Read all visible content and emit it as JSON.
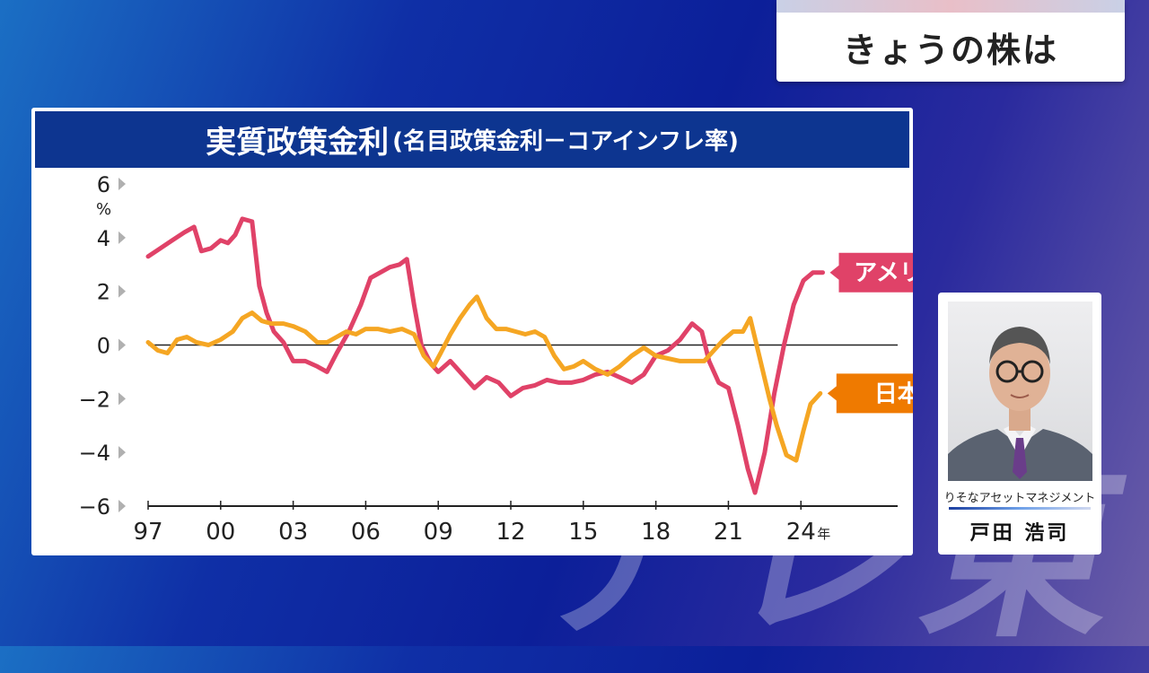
{
  "segment": {
    "title": "きょうの株は"
  },
  "watermark": "テレ東",
  "chart_data": {
    "type": "line",
    "title": "実質政策金利",
    "subtitle": "(名目政策金利－コアインフレ率)",
    "ylabel_unit": "%",
    "ylim": [
      -6,
      6
    ],
    "yticks": [
      6,
      4,
      2,
      0,
      -2,
      -4,
      -6
    ],
    "ytick_labels": [
      "6",
      "4",
      "2",
      "0",
      "−2",
      "−4",
      "−6"
    ],
    "xlim": [
      1997,
      2028
    ],
    "xticks": [
      1997,
      2000,
      2003,
      2006,
      2009,
      2012,
      2015,
      2018,
      2021,
      2024
    ],
    "xtick_labels": [
      "97",
      "00",
      "03",
      "06",
      "09",
      "12",
      "15",
      "18",
      "21",
      "24"
    ],
    "x_unit": "年",
    "zero_line": true,
    "series": [
      {
        "name": "アメリカ",
        "color": "#e04268",
        "points": [
          [
            1997.0,
            3.3
          ],
          [
            1997.5,
            3.6
          ],
          [
            1998.0,
            3.9
          ],
          [
            1998.5,
            4.2
          ],
          [
            1998.9,
            4.4
          ],
          [
            1999.2,
            3.5
          ],
          [
            1999.6,
            3.6
          ],
          [
            2000.0,
            3.9
          ],
          [
            2000.3,
            3.8
          ],
          [
            2000.6,
            4.1
          ],
          [
            2000.9,
            4.7
          ],
          [
            2001.3,
            4.6
          ],
          [
            2001.6,
            2.2
          ],
          [
            2001.9,
            1.2
          ],
          [
            2002.2,
            0.5
          ],
          [
            2002.6,
            0.1
          ],
          [
            2003.0,
            -0.6
          ],
          [
            2003.5,
            -0.6
          ],
          [
            2004.0,
            -0.8
          ],
          [
            2004.4,
            -1.0
          ],
          [
            2004.8,
            -0.3
          ],
          [
            2005.3,
            0.5
          ],
          [
            2005.8,
            1.5
          ],
          [
            2006.2,
            2.5
          ],
          [
            2006.6,
            2.7
          ],
          [
            2007.0,
            2.9
          ],
          [
            2007.4,
            3.0
          ],
          [
            2007.7,
            3.2
          ],
          [
            2008.0,
            1.5
          ],
          [
            2008.3,
            0.0
          ],
          [
            2008.7,
            -0.7
          ],
          [
            2009.0,
            -1.0
          ],
          [
            2009.5,
            -0.6
          ],
          [
            2010.0,
            -1.1
          ],
          [
            2010.5,
            -1.6
          ],
          [
            2011.0,
            -1.2
          ],
          [
            2011.5,
            -1.4
          ],
          [
            2012.0,
            -1.9
          ],
          [
            2012.5,
            -1.6
          ],
          [
            2013.0,
            -1.5
          ],
          [
            2013.5,
            -1.3
          ],
          [
            2014.0,
            -1.4
          ],
          [
            2014.5,
            -1.4
          ],
          [
            2015.0,
            -1.3
          ],
          [
            2015.5,
            -1.1
          ],
          [
            2016.0,
            -1.0
          ],
          [
            2016.5,
            -1.2
          ],
          [
            2017.0,
            -1.4
          ],
          [
            2017.5,
            -1.1
          ],
          [
            2018.0,
            -0.4
          ],
          [
            2018.5,
            -0.2
          ],
          [
            2019.0,
            0.2
          ],
          [
            2019.5,
            0.8
          ],
          [
            2019.9,
            0.5
          ],
          [
            2020.2,
            -0.6
          ],
          [
            2020.6,
            -1.4
          ],
          [
            2021.0,
            -1.6
          ],
          [
            2021.4,
            -3.0
          ],
          [
            2021.8,
            -4.6
          ],
          [
            2022.1,
            -5.5
          ],
          [
            2022.5,
            -4.0
          ],
          [
            2022.9,
            -1.8
          ],
          [
            2023.3,
            0.0
          ],
          [
            2023.7,
            1.5
          ],
          [
            2024.1,
            2.4
          ],
          [
            2024.5,
            2.7
          ],
          [
            2024.9,
            2.7
          ]
        ]
      },
      {
        "name": "日本",
        "color": "#f5a623",
        "points": [
          [
            1997.0,
            0.1
          ],
          [
            1997.4,
            -0.2
          ],
          [
            1997.8,
            -0.3
          ],
          [
            1998.2,
            0.2
          ],
          [
            1998.6,
            0.3
          ],
          [
            1999.0,
            0.1
          ],
          [
            1999.5,
            0.0
          ],
          [
            2000.0,
            0.2
          ],
          [
            2000.5,
            0.5
          ],
          [
            2000.9,
            1.0
          ],
          [
            2001.3,
            1.2
          ],
          [
            2001.7,
            0.9
          ],
          [
            2002.1,
            0.8
          ],
          [
            2002.6,
            0.8
          ],
          [
            2003.0,
            0.7
          ],
          [
            2003.5,
            0.5
          ],
          [
            2004.0,
            0.1
          ],
          [
            2004.4,
            0.1
          ],
          [
            2004.8,
            0.3
          ],
          [
            2005.2,
            0.5
          ],
          [
            2005.6,
            0.4
          ],
          [
            2006.0,
            0.6
          ],
          [
            2006.5,
            0.6
          ],
          [
            2007.0,
            0.5
          ],
          [
            2007.5,
            0.6
          ],
          [
            2008.0,
            0.4
          ],
          [
            2008.4,
            -0.4
          ],
          [
            2008.8,
            -0.8
          ],
          [
            2009.1,
            -0.3
          ],
          [
            2009.5,
            0.4
          ],
          [
            2009.9,
            1.0
          ],
          [
            2010.3,
            1.5
          ],
          [
            2010.6,
            1.8
          ],
          [
            2011.0,
            1.0
          ],
          [
            2011.4,
            0.6
          ],
          [
            2011.8,
            0.6
          ],
          [
            2012.2,
            0.5
          ],
          [
            2012.6,
            0.4
          ],
          [
            2013.0,
            0.5
          ],
          [
            2013.4,
            0.3
          ],
          [
            2013.8,
            -0.4
          ],
          [
            2014.2,
            -0.9
          ],
          [
            2014.6,
            -0.8
          ],
          [
            2015.0,
            -0.6
          ],
          [
            2015.5,
            -0.9
          ],
          [
            2016.0,
            -1.1
          ],
          [
            2016.5,
            -0.8
          ],
          [
            2017.0,
            -0.4
          ],
          [
            2017.5,
            -0.1
          ],
          [
            2018.0,
            -0.4
          ],
          [
            2018.5,
            -0.5
          ],
          [
            2019.0,
            -0.6
          ],
          [
            2019.5,
            -0.6
          ],
          [
            2020.0,
            -0.6
          ],
          [
            2020.4,
            -0.2
          ],
          [
            2020.8,
            0.2
          ],
          [
            2021.2,
            0.5
          ],
          [
            2021.6,
            0.5
          ],
          [
            2021.9,
            1.0
          ],
          [
            2022.3,
            -0.5
          ],
          [
            2022.7,
            -2.0
          ],
          [
            2023.0,
            -3.0
          ],
          [
            2023.4,
            -4.1
          ],
          [
            2023.8,
            -4.3
          ],
          [
            2024.1,
            -3.2
          ],
          [
            2024.4,
            -2.2
          ],
          [
            2024.8,
            -1.8
          ]
        ]
      }
    ]
  },
  "legend": {
    "us": "アメリカ",
    "jp": "日本"
  },
  "commentator": {
    "company": "りそなアセットマネジメント",
    "name": "戸田 浩司"
  }
}
